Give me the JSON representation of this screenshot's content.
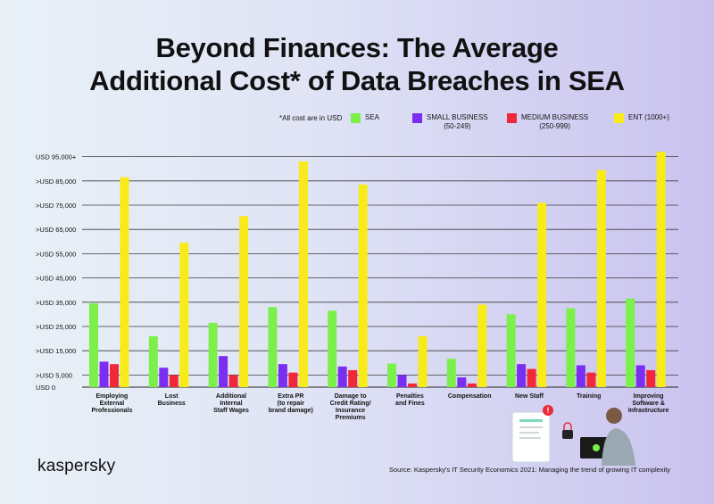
{
  "header": {
    "title_line1": "Beyond Finances: The Average",
    "title_line2": "Additional Cost* of Data Breaches in SEA"
  },
  "legend": {
    "note": "*All cost are in USD",
    "items": [
      {
        "label": "SEA",
        "sub": "",
        "color": "#7cf04a"
      },
      {
        "label": "SMALL BUSINESS",
        "sub": "(50-249)",
        "color": "#7a2ef0"
      },
      {
        "label": "MEDIUM BUSINESS",
        "sub": "(250-999)",
        "color": "#f0283a"
      },
      {
        "label": "ENT (1000+)",
        "sub": "",
        "color": "#f7ec1a"
      }
    ]
  },
  "chart_data": {
    "type": "bar",
    "title": "Beyond Finances: The Average Additional Cost* of Data Breaches in SEA",
    "xlabel": "",
    "ylabel": "",
    "ylim": [
      0,
      100000
    ],
    "y_ticks": [
      {
        "value": 0,
        "label": "USD 0"
      },
      {
        "value": 5000,
        "label": ">USD 5,000"
      },
      {
        "value": 15000,
        "label": ">USD 15,000"
      },
      {
        "value": 25000,
        "label": ">USD 25,000"
      },
      {
        "value": 35000,
        "label": ">USD 35,000"
      },
      {
        "value": 45000,
        "label": ">USD 45,000"
      },
      {
        "value": 55000,
        "label": ">USD 55,000"
      },
      {
        "value": 65000,
        "label": ">USD 65,000"
      },
      {
        "value": 75000,
        "label": ">USD 75,000"
      },
      {
        "value": 85000,
        "label": ">USD 85,000"
      },
      {
        "value": 95000,
        "label": "USD 95,000+"
      }
    ],
    "categories": [
      [
        "Employing",
        "External",
        "Professionals"
      ],
      [
        "Lost",
        "Business"
      ],
      [
        "Additional",
        "Internal",
        "Staff Wages"
      ],
      [
        "Extra PR",
        "(to repair",
        "brand damage)"
      ],
      [
        "Damage to",
        "Credit Rating/",
        "Insurance",
        "Premiums"
      ],
      [
        "Penalties",
        "and Fines"
      ],
      [
        "Compensation"
      ],
      [
        "New Staff"
      ],
      [
        "Training"
      ],
      [
        "Improving",
        "Software &",
        "Infrastructure"
      ]
    ],
    "series": [
      {
        "name": "SEA",
        "color": "#7cf04a",
        "values": [
          34500,
          21000,
          26500,
          33000,
          31500,
          9700,
          11700,
          30000,
          32500,
          36500
        ]
      },
      {
        "name": "SMALL BUSINESS (50-249)",
        "color": "#7a2ef0",
        "values": [
          10500,
          8000,
          12800,
          9500,
          8500,
          5000,
          4000,
          9500,
          9000,
          9000
        ]
      },
      {
        "name": "MEDIUM BUSINESS (250-999)",
        "color": "#f0283a",
        "values": [
          9500,
          5000,
          5000,
          6000,
          7000,
          1500,
          1500,
          7500,
          6000,
          7000
        ]
      },
      {
        "name": "ENT (1000+)",
        "color": "#f7ec1a",
        "values": [
          86500,
          59500,
          70500,
          93000,
          83500,
          21000,
          34000,
          76000,
          89500,
          97000
        ]
      }
    ]
  },
  "footer": {
    "brand": "kaspersky",
    "source": "Source: Kaspersky's IT Security Economics 2021: Managing the trend of growing IT complexity"
  },
  "illustration": {
    "icon": "person-laptop-document-illustration",
    "alert_symbol": "!"
  }
}
